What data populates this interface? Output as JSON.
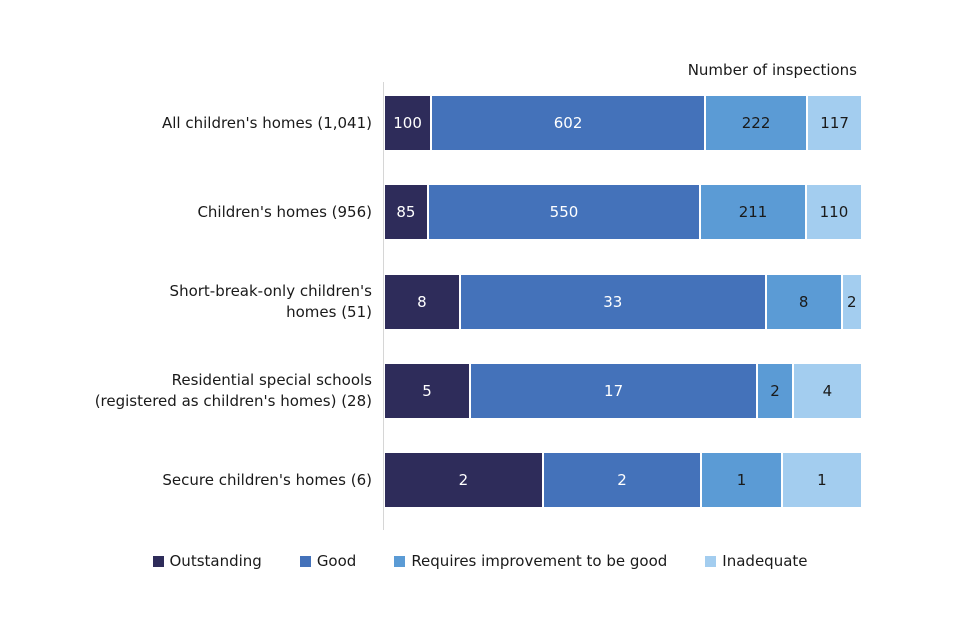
{
  "page": {
    "background": "#ffffff",
    "text_color": "#1a1a1a"
  },
  "chart_data": {
    "type": "bar",
    "variant": "horizontal-stacked-100pct",
    "axis_title": "Number of inspections",
    "grid": false,
    "axis_line_color": "#d6d6d6",
    "legend_position": "bottom",
    "categories": [
      "All children's homes (1,041)",
      "Children's homes (956)",
      "Short-break-only children's\nhomes (51)",
      "Residential special schools\n(registered as children's homes) (28)",
      "Secure children's homes (6)"
    ],
    "category_totals": [
      1041,
      956,
      51,
      28,
      6
    ],
    "series": [
      {
        "name": "Outstanding",
        "color": "#2e2c5a",
        "label_color": "#ffffff",
        "values": [
          100,
          85,
          8,
          5,
          2
        ]
      },
      {
        "name": "Good",
        "color": "#4472ba",
        "label_color": "#ffffff",
        "values": [
          602,
          550,
          33,
          17,
          2
        ]
      },
      {
        "name": "Requires improvement to be good",
        "color": "#5b9bd5",
        "label_color": "#1a1a1a",
        "values": [
          222,
          211,
          8,
          2,
          1
        ]
      },
      {
        "name": "Inadequate",
        "color": "#a3cdef",
        "label_color": "#1a1a1a",
        "values": [
          117,
          110,
          2,
          4,
          1
        ]
      }
    ],
    "legend": [
      "Outstanding",
      "Good",
      "Requires improvement to be good",
      "Inadequate"
    ]
  }
}
